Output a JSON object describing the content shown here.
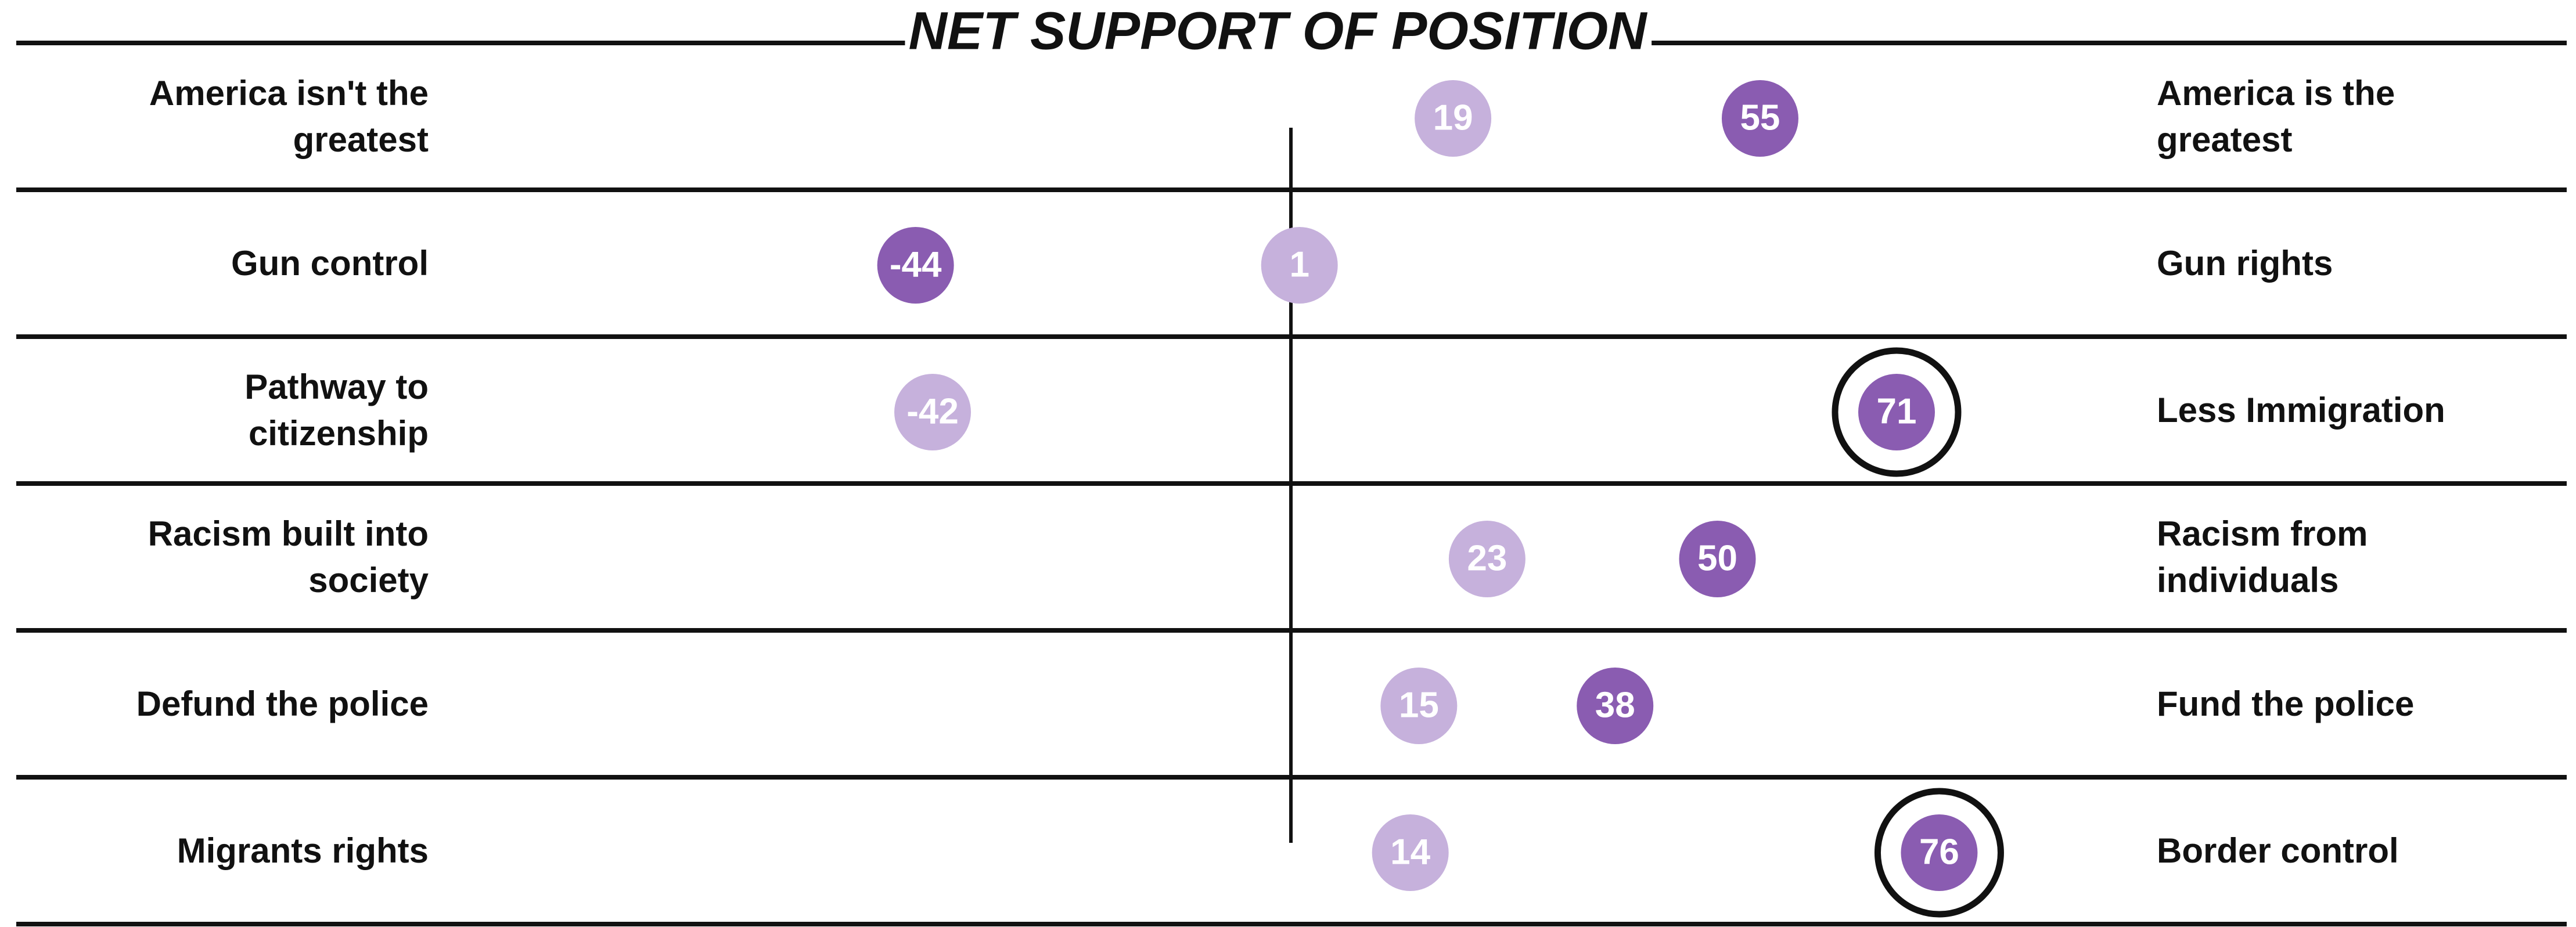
{
  "chart_data": {
    "type": "dot",
    "title": "NET SUPPORT OF POSITION",
    "left_labels": [
      "America isn't the greatest",
      "Gun control",
      "Pathway to citizenship",
      "Racism built into society",
      "Defund the police",
      "Migrants rights"
    ],
    "right_labels": [
      "America is the greatest",
      "Gun rights",
      "Less Immigration",
      "Racism from individuals",
      "Fund the police",
      "Border control"
    ],
    "series": [
      {
        "color": "#c6b1dc",
        "values": [
          19,
          1,
          -42,
          23,
          15,
          14
        ]
      },
      {
        "color": "#8a5cb1",
        "values": [
          55,
          -44,
          71,
          50,
          38,
          76
        ],
        "highlighted": [
          false,
          false,
          true,
          false,
          false,
          true
        ]
      }
    ],
    "xlim": [
      -100,
      100
    ],
    "zero_line": true
  }
}
